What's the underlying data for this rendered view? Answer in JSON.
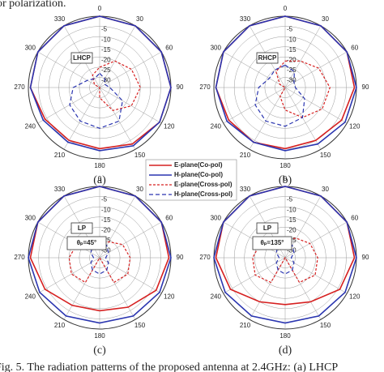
{
  "header_text": "or polarization.",
  "caption": "Fig. 5. The radiation patterns of the proposed antenna at 2.4GHz: (a) LHCP",
  "chart_data": [
    {
      "type": "polar",
      "label": "(a)",
      "annotation_box": "LHCP",
      "x": [
        0,
        30,
        60,
        90,
        120,
        150,
        180,
        210,
        240,
        270,
        300,
        330
      ],
      "rlim": [
        -35,
        0
      ],
      "rticks": [
        -5,
        -10,
        -15,
        -20,
        -25,
        -30
      ],
      "series": [
        {
          "name": "E-plane(Co-pol)",
          "color": "#d62020",
          "style": "solid",
          "values": [
            0,
            0,
            0,
            0,
            -1,
            -3,
            -5,
            -5,
            -4,
            -1,
            0,
            0
          ]
        },
        {
          "name": "H-plane(Co-pol)",
          "color": "#2a35b0",
          "style": "solid",
          "values": [
            0,
            0,
            0,
            0,
            -1,
            -2,
            -4,
            -4,
            -3,
            -1,
            0,
            0
          ]
        },
        {
          "name": "E-plane(Cross-pol)",
          "color": "#d62020",
          "style": "dot",
          "values": [
            -25,
            -20,
            -17,
            -15,
            -17,
            -22,
            -30,
            -35,
            -35,
            -35,
            -32,
            -28
          ]
        },
        {
          "name": "H-plane(Cross-pol)",
          "color": "#2a35b0",
          "style": "dash",
          "values": [
            -28,
            -30,
            -32,
            -30,
            -22,
            -16,
            -15,
            -16,
            -18,
            -22,
            -28,
            -30
          ]
        }
      ]
    },
    {
      "type": "polar",
      "label": "(b)",
      "annotation_box": "RHCP",
      "x": [
        0,
        30,
        60,
        90,
        120,
        150,
        180,
        210,
        240,
        270,
        300,
        330
      ],
      "rlim": [
        -35,
        0
      ],
      "rticks": [
        -5,
        -10,
        -15,
        -20,
        -25,
        -30
      ],
      "series": [
        {
          "name": "E-plane(Co-pol)",
          "color": "#d62020",
          "style": "solid",
          "values": [
            0,
            0,
            0,
            -1,
            -3,
            -5,
            -5,
            -4,
            -3,
            -1,
            0,
            0
          ]
        },
        {
          "name": "H-plane(Co-pol)",
          "color": "#2a35b0",
          "style": "solid",
          "values": [
            0,
            0,
            0,
            0,
            -1,
            -3,
            -4,
            -4,
            -2,
            -1,
            0,
            0
          ]
        },
        {
          "name": "E-plane(Cross-pol)",
          "color": "#d62020",
          "style": "dot",
          "values": [
            -22,
            -20,
            -16,
            -13,
            -14,
            -18,
            -24,
            -30,
            -35,
            -35,
            -32,
            -26
          ]
        },
        {
          "name": "H-plane(Cross-pol)",
          "color": "#2a35b0",
          "style": "dash",
          "values": [
            -24,
            -26,
            -30,
            -30,
            -24,
            -18,
            -16,
            -16,
            -18,
            -22,
            -26,
            -25
          ]
        }
      ]
    },
    {
      "type": "polar",
      "label": "(c)",
      "annotation_box": "LP",
      "annotation": "θₚ=45°",
      "x": [
        0,
        30,
        60,
        90,
        120,
        150,
        180,
        210,
        240,
        270,
        300,
        330
      ],
      "rlim": [
        -35,
        0
      ],
      "rticks": [
        -5,
        -10,
        -15,
        -20,
        -25,
        -30
      ],
      "series": [
        {
          "name": "E-plane(Co-pol)",
          "color": "#d62020",
          "style": "solid",
          "values": [
            0,
            0,
            0,
            -1,
            -3,
            -7,
            -9,
            -8,
            -4,
            -1,
            0,
            0
          ]
        },
        {
          "name": "H-plane(Co-pol)",
          "color": "#2a35b0",
          "style": "solid",
          "values": [
            0,
            0,
            0,
            0,
            -1,
            -2,
            -3,
            -2,
            -1,
            0,
            0,
            0
          ]
        },
        {
          "name": "E-plane(Cross-pol)",
          "color": "#d62020",
          "style": "dot",
          "values": [
            -28,
            -26,
            -22,
            -20,
            -19,
            -21,
            -35,
            -21,
            -19,
            -20,
            -22,
            -26
          ]
        },
        {
          "name": "H-plane(Cross-pol)",
          "color": "#2a35b0",
          "style": "dash",
          "values": [
            -26,
            -28,
            -30,
            -32,
            -30,
            -28,
            -27,
            -28,
            -30,
            -32,
            -30,
            -28
          ]
        }
      ]
    },
    {
      "type": "polar",
      "label": "(d)",
      "annotation_box": "LP",
      "annotation": "θₚ=135°",
      "x": [
        0,
        30,
        60,
        90,
        120,
        150,
        180,
        210,
        240,
        270,
        300,
        330
      ],
      "rlim": [
        -35,
        0
      ],
      "rticks": [
        -5,
        -10,
        -15,
        -20,
        -25,
        -30
      ],
      "series": [
        {
          "name": "E-plane(Co-pol)",
          "color": "#d62020",
          "style": "solid",
          "values": [
            0,
            0,
            0,
            -1,
            -4,
            -10,
            -12,
            -10,
            -4,
            -1,
            0,
            0
          ]
        },
        {
          "name": "H-plane(Co-pol)",
          "color": "#2a35b0",
          "style": "solid",
          "values": [
            0,
            0,
            0,
            0,
            -1,
            -2,
            -3,
            -2,
            -1,
            0,
            0,
            0
          ]
        },
        {
          "name": "E-plane(Cross-pol)",
          "color": "#d62020",
          "style": "dot",
          "values": [
            -26,
            -24,
            -21,
            -19,
            -18,
            -21,
            -35,
            -21,
            -18,
            -19,
            -21,
            -24
          ]
        },
        {
          "name": "H-plane(Cross-pol)",
          "color": "#2a35b0",
          "style": "dash",
          "values": [
            -26,
            -28,
            -30,
            -32,
            -30,
            -28,
            -27,
            -28,
            -30,
            -32,
            -30,
            -28
          ]
        }
      ]
    }
  ]
}
